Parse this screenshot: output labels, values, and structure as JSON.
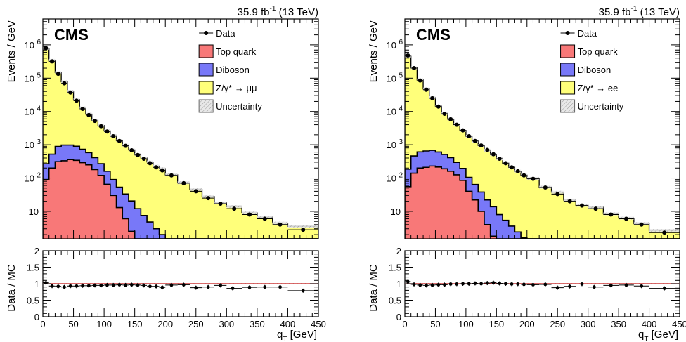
{
  "chart_data": [
    {
      "type": "histogram",
      "panel": "left",
      "label": "CMS",
      "lumi": "35.9 fb",
      "lumi_sup": "-1",
      "lumi_suffix": " (13 TeV)",
      "ylabel": "Events / GeV",
      "xlabel": "q",
      "xlabel_sub": "T",
      "xlabel_unit": " [GeV]",
      "xlim": [
        0,
        450
      ],
      "ylim": [
        1.5,
        6000000
      ],
      "ylog": true,
      "legend_position": "top-right",
      "legend": [
        {
          "label": "Data",
          "kind": "marker"
        },
        {
          "label": "Top quark",
          "kind": "fill",
          "color": "#f87878"
        },
        {
          "label": "Diboson",
          "kind": "fill",
          "color": "#7878f8"
        },
        {
          "label": "Z/γ* → μμ",
          "kind": "fill",
          "color": "#ffff7a"
        },
        {
          "label": "Uncertainty",
          "kind": "hatch"
        }
      ],
      "bin_edges": [
        0,
        10,
        20,
        30,
        40,
        50,
        60,
        70,
        80,
        90,
        100,
        110,
        120,
        130,
        140,
        150,
        160,
        170,
        180,
        190,
        200,
        220,
        240,
        260,
        280,
        300,
        325,
        350,
        375,
        400,
        450
      ],
      "data": [
        800000,
        320000,
        135000,
        70000,
        37000,
        21000,
        12000,
        7800,
        5200,
        3600,
        2500,
        1800,
        1300,
        930,
        680,
        490,
        380,
        280,
        210,
        170,
        120,
        70,
        40,
        25,
        17,
        12,
        8,
        6,
        4,
        2.8
      ],
      "top_quark": [
        90,
        200,
        310,
        330,
        360,
        340,
        290,
        250,
        180,
        120,
        65,
        30,
        13,
        6,
        2.5
      ],
      "diboson": [
        180,
        320,
        580,
        650,
        620,
        560,
        440,
        330,
        230,
        150,
        95,
        60,
        40,
        27,
        18,
        12,
        7.5,
        4.8,
        3,
        2,
        1.4
      ],
      "ratio": {
        "ylabel": "Data / MC",
        "ylim": [
          0,
          2
        ],
        "x": [
          5,
          15,
          25,
          35,
          45,
          55,
          65,
          75,
          85,
          95,
          105,
          115,
          125,
          135,
          145,
          155,
          165,
          175,
          185,
          195,
          210,
          230,
          250,
          270,
          290,
          310,
          337.5,
          362.5,
          387.5,
          425
        ],
        "y": [
          1.03,
          0.93,
          0.92,
          0.9,
          0.93,
          0.93,
          0.94,
          0.94,
          0.95,
          0.95,
          0.96,
          0.96,
          0.97,
          0.96,
          0.97,
          0.96,
          0.95,
          0.92,
          0.92,
          0.89,
          0.96,
          0.97,
          0.88,
          0.9,
          0.95,
          0.86,
          0.89,
          0.9,
          0.9,
          0.79
        ]
      }
    },
    {
      "type": "histogram",
      "panel": "right",
      "label": "CMS",
      "lumi": "35.9 fb",
      "lumi_sup": "-1",
      "lumi_suffix": " (13 TeV)",
      "ylabel": "Events / GeV",
      "xlabel": "q",
      "xlabel_sub": "T",
      "xlabel_unit": " [GeV]",
      "xlim": [
        0,
        450
      ],
      "ylim": [
        1.5,
        6000000
      ],
      "ylog": true,
      "legend_position": "top-right",
      "legend": [
        {
          "label": "Data",
          "kind": "marker"
        },
        {
          "label": "Top quark",
          "kind": "fill",
          "color": "#f87878"
        },
        {
          "label": "Diboson",
          "kind": "fill",
          "color": "#7878f8"
        },
        {
          "label": "Z/γ* → ee",
          "kind": "fill",
          "color": "#ffff7a"
        },
        {
          "label": "Uncertainty",
          "kind": "hatch"
        }
      ],
      "bin_edges": [
        0,
        10,
        20,
        30,
        40,
        50,
        60,
        70,
        80,
        90,
        100,
        110,
        120,
        130,
        140,
        150,
        160,
        170,
        180,
        190,
        200,
        220,
        240,
        260,
        280,
        300,
        325,
        350,
        375,
        400,
        450
      ],
      "data": [
        480000,
        200000,
        85000,
        45000,
        25000,
        14000,
        8500,
        5800,
        4000,
        2700,
        1800,
        1300,
        950,
        700,
        520,
        380,
        280,
        210,
        160,
        120,
        95,
        52,
        33,
        20,
        15,
        12,
        8,
        6,
        4,
        2.3
      ],
      "top_quark": [
        55,
        140,
        200,
        210,
        230,
        215,
        190,
        160,
        125,
        85,
        40,
        22,
        10,
        4,
        1.8
      ],
      "diboson": [
        130,
        320,
        410,
        440,
        450,
        390,
        320,
        250,
        170,
        110,
        65,
        42,
        28,
        18,
        12,
        8,
        5.4,
        3.6,
        2.4,
        1.6
      ],
      "ratio": {
        "ylabel": "Data / MC",
        "ylim": [
          0,
          2
        ],
        "x": [
          5,
          15,
          25,
          35,
          45,
          55,
          65,
          75,
          85,
          95,
          105,
          115,
          125,
          135,
          145,
          155,
          165,
          175,
          185,
          195,
          210,
          230,
          250,
          270,
          290,
          310,
          337.5,
          362.5,
          387.5,
          425
        ],
        "y": [
          1.06,
          0.98,
          0.96,
          0.95,
          0.96,
          0.97,
          0.97,
          0.99,
          0.99,
          1.0,
          1.0,
          1.01,
          1.0,
          1.02,
          1.03,
          1.01,
          1.0,
          0.99,
          0.99,
          0.98,
          0.97,
          0.98,
          0.88,
          0.92,
          0.99,
          0.9,
          0.95,
          0.96,
          0.93,
          0.86
        ]
      }
    }
  ]
}
